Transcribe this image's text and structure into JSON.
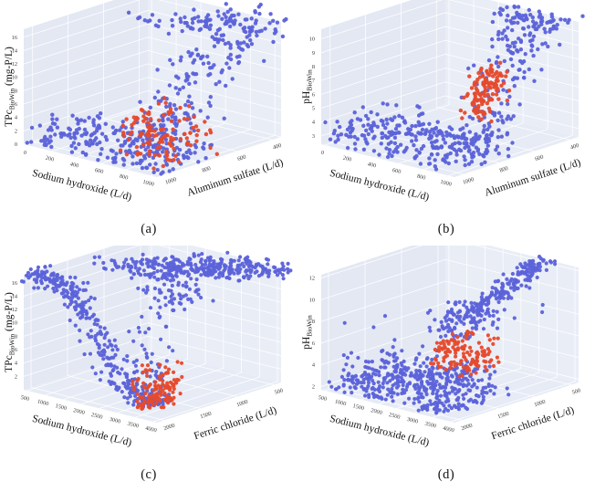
{
  "figure": {
    "background": "#ffffff",
    "pane_color": "#e6ebf5",
    "pane_left_color": "#e3e8f3",
    "pane_right_color": "#e9edf6",
    "grid_color": "#ffffff",
    "tick_text_color": "#3b3b3b",
    "blue_hex": "#5c63da",
    "red_hex": "#e64a2d"
  },
  "chart_data": [
    {
      "id": "a",
      "caption": "(a)",
      "type": "scatter3d",
      "seed": 11,
      "x_axis": {
        "title": "Sodium hydroxide (L/d)",
        "ticks": [
          0,
          200,
          400,
          600,
          800,
          1000
        ],
        "range": [
          -30,
          1050
        ]
      },
      "y_axis": {
        "title": "Aluminum sulfate (L/d)",
        "ticks": [
          1000,
          800,
          600,
          400
        ],
        "range": [
          350,
          1050
        ],
        "reversed": true
      },
      "z_axis": {
        "title_main": "TPc",
        "title_sub": "BioWin",
        "title_rest": " (mg-P/L)",
        "ticks": [
          0,
          2,
          4,
          6,
          8,
          10,
          12,
          14,
          16
        ],
        "range": [
          0,
          17.2
        ]
      },
      "series": [
        {
          "name": "series_blue",
          "color": "#5c63da",
          "marker_px": 2.2,
          "clusters": [
            {
              "kind": "floor",
              "n": 240,
              "s": [
                0,
                1
              ],
              "d": [
                0,
                0.52
              ],
              "z": [
                0.1,
                3.4
              ],
              "pow": 2.2
            },
            {
              "kind": "ridge",
              "n": 200,
              "s": [
                0.5,
                0.8
              ],
              "sj": 0.13,
              "d": [
                0.42,
                0.97
              ],
              "dj": 0.05,
              "z": [
                0.4,
                16.5
              ],
              "k": 6,
              "mid": 0.5,
              "zj": 0.9
            },
            {
              "kind": "linear",
              "n": 80,
              "s": [
                0.45,
                0.95
              ],
              "sj": 0.12,
              "d": [
                0.6,
                1.03
              ],
              "dj": 0.0,
              "z": [
                16.2,
                18.0
              ],
              "zj": 0.5
            }
          ]
        },
        {
          "name": "series_red",
          "color": "#e64a2d",
          "marker_px": 2.2,
          "clusters": [
            {
              "kind": "uniform",
              "n": 115,
              "s": [
                0.6,
                1.0
              ],
              "d": [
                0.06,
                0.5
              ],
              "z": [
                0.2,
                7.3
              ]
            }
          ]
        }
      ]
    },
    {
      "id": "b",
      "caption": "(b)",
      "type": "scatter3d",
      "seed": 22,
      "x_axis": {
        "title": "Sodium hydroxide (L/d)",
        "ticks": [
          0,
          200,
          400,
          600,
          800,
          1000
        ],
        "range": [
          -30,
          1050
        ]
      },
      "y_axis": {
        "title": "Aluminum sulfate (L/d)",
        "ticks": [
          1000,
          800,
          600,
          400
        ],
        "range": [
          350,
          1050
        ],
        "reversed": true
      },
      "z_axis": {
        "title_main": "pH",
        "title_sub": "BioWin",
        "title_rest": "",
        "ticks": [
          3,
          4,
          5,
          6,
          7,
          8,
          9,
          10
        ],
        "range": [
          2.4,
          10.7
        ]
      },
      "series": [
        {
          "name": "series_blue",
          "color": "#5c63da",
          "marker_px": 2.2,
          "clusters": [
            {
              "kind": "floor",
              "n": 260,
              "s": [
                0,
                1
              ],
              "d": [
                0,
                0.52
              ],
              "z": [
                2.6,
                4.6
              ],
              "pow": 2.2
            },
            {
              "kind": "ridge",
              "n": 185,
              "s": [
                0.9,
                0.72
              ],
              "sj": 0.1,
              "d": [
                0.22,
                1.0
              ],
              "dj": 0.05,
              "z": [
                3.1,
                10.35
              ],
              "k": 6.5,
              "mid": 0.42,
              "zj": 0.32
            },
            {
              "kind": "uniform",
              "n": 45,
              "s": [
                0.5,
                0.95
              ],
              "d": [
                0.85,
                1.03
              ],
              "z": [
                10.0,
                10.9
              ]
            }
          ]
        },
        {
          "name": "series_red",
          "color": "#e64a2d",
          "marker_px": 2.2,
          "clusters": [
            {
              "kind": "linear",
              "n": 120,
              "s": [
                0.88,
                0.78
              ],
              "sj": 0.05,
              "d": [
                0.3,
                0.52
              ],
              "dj": 0.03,
              "z": [
                5.7,
                8.0
              ],
              "zj": 0.35
            }
          ]
        }
      ]
    },
    {
      "id": "c",
      "caption": "(c)",
      "type": "scatter3d",
      "seed": 33,
      "x_axis": {
        "title": "Sodium hydroxide (L/d)",
        "ticks": [
          500,
          1000,
          1500,
          2000,
          2500,
          3000,
          3500,
          4000
        ],
        "range": [
          400,
          4100
        ]
      },
      "y_axis": {
        "title": "Ferric chloride (L/d)",
        "ticks": [
          2000,
          1500,
          1000,
          500
        ],
        "range": [
          400,
          2100
        ],
        "reversed": true
      },
      "z_axis": {
        "title_main": "TPc",
        "title_sub": "BioWin",
        "title_rest": " (mg-P/L)",
        "ticks": [
          2,
          4,
          6,
          8,
          10,
          12,
          14,
          16
        ],
        "range": [
          0,
          17.2
        ]
      },
      "series": [
        {
          "name": "series_blue",
          "color": "#5c63da",
          "marker_px": 2.1,
          "clusters": [
            {
              "kind": "decay",
              "n": 340,
              "s": [
                0,
                0.78
              ],
              "sj": 0.015,
              "d": [
                0.07,
                0.26
              ],
              "dj": 0.05,
              "z": [
                0,
                17.1
              ],
              "k": 9,
              "mid": 0.52,
              "zj": 0.45
            },
            {
              "kind": "uniform",
              "n": 55,
              "s": [
                0.68,
                0.82
              ],
              "d": [
                0.08,
                0.35
              ],
              "z": [
                0.3,
                14.5
              ]
            },
            {
              "kind": "linear",
              "n": 330,
              "s": [
                0.45,
                0.95
              ],
              "sj": 0.14,
              "d": [
                0.33,
                1.02
              ],
              "dj": 0.02,
              "z": [
                18.2,
                17.0
              ],
              "zj": 0.5
            },
            {
              "kind": "uniform",
              "n": 55,
              "s": [
                0.5,
                0.9
              ],
              "d": [
                0.32,
                0.6
              ],
              "z": [
                13.4,
                16.5
              ]
            }
          ]
        },
        {
          "name": "series_red",
          "color": "#e64a2d",
          "marker_px": 2.1,
          "clusters": [
            {
              "kind": "floor",
              "n": 125,
              "s": [
                0.71,
                0.85
              ],
              "d": [
                0.08,
                0.4
              ],
              "z": [
                0.1,
                6.4
              ],
              "pow": 1.4
            }
          ]
        }
      ]
    },
    {
      "id": "d",
      "caption": "(d)",
      "type": "scatter3d",
      "seed": 44,
      "x_axis": {
        "title": "Sodium hydroxide (L/d)",
        "ticks": [
          500,
          1000,
          1500,
          2000,
          2500,
          3000,
          3500,
          4000
        ],
        "range": [
          400,
          4100
        ]
      },
      "y_axis": {
        "title": "Ferric chloride (L/d)",
        "ticks": [
          2000,
          1500,
          1000,
          500
        ],
        "range": [
          400,
          2100
        ],
        "reversed": true
      },
      "z_axis": {
        "title_main": "pH",
        "title_sub": "BioWin",
        "title_rest": "",
        "ticks": [
          2,
          4,
          6,
          8,
          10,
          12
        ],
        "range": [
          1.7,
          12.3
        ]
      },
      "series": [
        {
          "name": "series_blue",
          "color": "#5c63da",
          "marker_px": 2.1,
          "clusters": [
            {
              "kind": "floor",
              "n": 430,
              "s": [
                0.02,
                0.92
              ],
              "d": [
                0,
                0.56
              ],
              "z": [
                1.95,
                4.6
              ],
              "pow": 2.4
            },
            {
              "kind": "uniform",
              "n": 50,
              "s": [
                0.66,
                0.9
              ],
              "d": [
                0.1,
                0.42
              ],
              "z": [
                4.3,
                5.3
              ]
            },
            {
              "kind": "uniform",
              "n": 95,
              "s": [
                0.58,
                0.86
              ],
              "d": [
                0.2,
                0.56
              ],
              "z": [
                7.7,
                9.9
              ]
            },
            {
              "kind": "linear",
              "n": 170,
              "s": [
                0.8,
                0.72
              ],
              "sj": 0.05,
              "d": [
                0.34,
                1.03
              ],
              "dj": 0.025,
              "z": [
                9.9,
                12.1
              ],
              "zj": 0.14
            },
            {
              "kind": "uniform",
              "n": 18,
              "s": [
                0.6,
                0.8
              ],
              "d": [
                0.28,
                0.5
              ],
              "z": [
                9.6,
                10.4
              ]
            },
            {
              "kind": "points",
              "pts": [
                [
                  0.12,
                  0.06,
                  8.0
                ],
                [
                  0.3,
                  0.1,
                  8.0
                ],
                [
                  0.2,
                  0.3,
                  8.0
                ],
                [
                  0.78,
                  0.72,
                  8.0
                ],
                [
                  0.82,
                  0.9,
                  8.0
                ],
                [
                  0.74,
                  0.99,
                  8.1
                ]
              ]
            }
          ]
        },
        {
          "name": "series_red",
          "color": "#e64a2d",
          "marker_px": 2.1,
          "clusters": [
            {
              "kind": "uniform",
              "n": 135,
              "s": [
                0.7,
                0.94
              ],
              "d": [
                0.12,
                0.44
              ],
              "z": [
                5.0,
                8.0
              ]
            }
          ]
        }
      ]
    }
  ]
}
